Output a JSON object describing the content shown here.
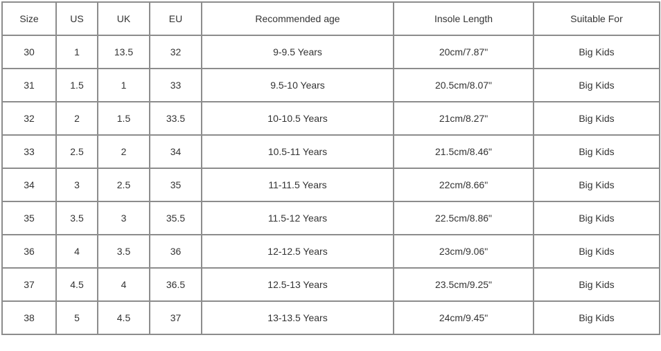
{
  "table": {
    "header": [
      "Size",
      "US",
      "UK",
      "EU",
      "Recommended age",
      "Insole Length",
      "Suitable For"
    ],
    "rows": [
      [
        "30",
        "1",
        "13.5",
        "32",
        "9-9.5 Years",
        "20cm/7.87\"",
        "Big Kids"
      ],
      [
        "31",
        "1.5",
        "1",
        "33",
        "9.5-10 Years",
        "20.5cm/8.07\"",
        "Big Kids"
      ],
      [
        "32",
        "2",
        "1.5",
        "33.5",
        "10-10.5 Years",
        "21cm/8.27\"",
        "Big Kids"
      ],
      [
        "33",
        "2.5",
        "2",
        "34",
        "10.5-11 Years",
        "21.5cm/8.46\"",
        "Big Kids"
      ],
      [
        "34",
        "3",
        "2.5",
        "35",
        "11-11.5 Years",
        "22cm/8.66\"",
        "Big Kids"
      ],
      [
        "35",
        "3.5",
        "3",
        "35.5",
        "11.5-12 Years",
        "22.5cm/8.86\"",
        "Big Kids"
      ],
      [
        "36",
        "4",
        "3.5",
        "36",
        "12-12.5 Years",
        "23cm/9.06\"",
        "Big Kids"
      ],
      [
        "37",
        "4.5",
        "4",
        "36.5",
        "12.5-13 Years",
        "23.5cm/9.25\"",
        "Big Kids"
      ],
      [
        "38",
        "5",
        "4.5",
        "37",
        "13-13.5 Years",
        "24cm/9.45\"",
        "Big Kids"
      ]
    ]
  }
}
